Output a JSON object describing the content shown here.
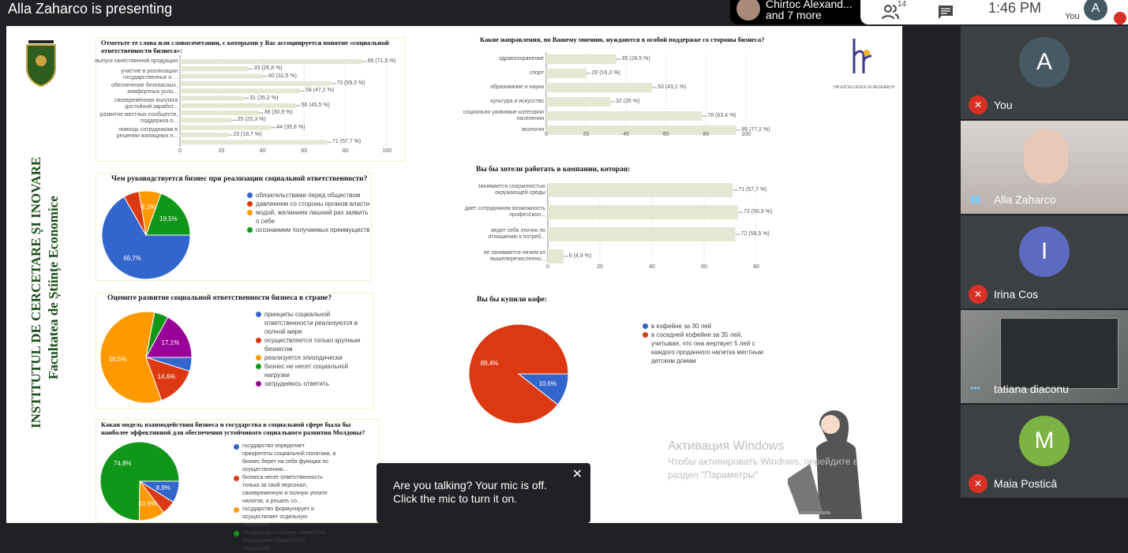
{
  "topbar": {
    "presenting": "Alla Zaharco is presenting",
    "others_name": "Chirtoc Alexand...",
    "others_more": "and 7 more",
    "people_count": "14",
    "time": "1:46 PM",
    "you_label": "You",
    "you_initial": "A"
  },
  "slide": {
    "institute_line1": "INSTITUTUL DE CERCETARE ȘI INOVARE",
    "institute_line2": "Facultatea de Științe Economice",
    "hr_logo_caption": "HR EXCELLENCE IN RESEARCH",
    "watermark_title": "Активация Windows",
    "watermark_text_1": "Чтобы активировать Windows, перейдите в",
    "watermark_text_2": "раздел \"Параметры\""
  },
  "chart_data": [
    {
      "type": "bar",
      "orientation": "horizontal",
      "title": "Отметьте те слова или словосочетания, с которыми у Вас ассоциируется понятие «социальной ответственности бизнеса»:",
      "categories": [
        "выпуск качественной продукции",
        "",
        "участие в реализации|государственных и ...",
        "",
        "обеспечение безопасных,|комфортных усло...",
        "",
        "своевременная выплата|достойной заработ...",
        "",
        "развитие местных сообществ,|поддержка о...",
        "",
        "помощь сотрудникам в|решении жилищных п...",
        ""
      ],
      "values": [
        88,
        33,
        40,
        73,
        58,
        31,
        56,
        38,
        25,
        44,
        23,
        71
      ],
      "data_labels": [
        "88 (71,5 %)",
        "33 (26,8 %)",
        "40 (32,5 %)",
        "73 (59,3 %)",
        "58 (47,2 %)",
        "31 (25,2 %)",
        "56 (45,5 %)",
        "38 (30,9 %)",
        "25 (20,3 %)",
        "44 (35,8 %)",
        "23 (18,7 %)",
        "71 (57,7 %)"
      ],
      "xlim": [
        0,
        100
      ],
      "xticks": [
        "0",
        "20",
        "40",
        "60",
        "80",
        "100"
      ],
      "color": "#e3e8d3"
    },
    {
      "type": "bar",
      "orientation": "horizontal",
      "title": "Какие направления, по Вашему мнению, нуждаются в особой поддержке со стороны бизнеса?",
      "categories": [
        "здравоохранение",
        "спорт",
        "образование и наука",
        "культура и искусство",
        "социально уязвимые категории|населения",
        "экология"
      ],
      "values": [
        35,
        20,
        53,
        32,
        78,
        95
      ],
      "data_labels": [
        "35 (28,5 %)",
        "20 (16,3 %)",
        "53 (43,1 %)",
        "32 (26 %)",
        "78 (63,4 %)",
        "95 (77,2 %)"
      ],
      "xlim": [
        0,
        100
      ],
      "xticks": [
        "0",
        "20",
        "40",
        "60",
        "80",
        "100"
      ],
      "color": "#e3e8d3"
    },
    {
      "type": "bar",
      "orientation": "horizontal",
      "title": "Вы бы хотели работать в компании, которая:",
      "categories": [
        "занимается сохранностью|окружающей среды",
        "дает сотрудником возможность|профессион...",
        "ведет себя этично по|отношению к потреб...",
        "не занимается ничем из|вышеперечисленно..."
      ],
      "values": [
        71,
        73,
        72,
        6
      ],
      "data_labels": [
        "71 (57,7 %)",
        "73 (59,3 %)",
        "72 (58,5 %)",
        "6 (4,9 %)"
      ],
      "xlim": [
        0,
        80
      ],
      "xticks": [
        "0",
        "20",
        "40",
        "60",
        "80"
      ],
      "color": "#e3e8d3"
    },
    {
      "type": "pie",
      "title": "Чем руководствуется бизнес при реализации социальной ответственности?",
      "labels": [
        "обязательствами перед обществом",
        "давлением со стороны органов власти",
        "модой, желанием лишний раз заявить о себе",
        "осознанием получаемых преимуществ"
      ],
      "values": [
        66.7,
        5.7,
        8.1,
        19.5
      ],
      "data_labels": [
        "66,7%",
        "",
        "8,1%",
        "19,5%"
      ],
      "colors": [
        "#3366cc",
        "#dc3912",
        "#ff9900",
        "#109618"
      ]
    },
    {
      "type": "pie",
      "title": "Оцените развитие социальной ответственности бизнеса в стране?",
      "labels": [
        "принципы социальной ответственности реализуются в полной мере",
        "осуществляется только крупным бизнесом",
        "реализуется эпизодически",
        "бизнес не несет социальной нагрузки",
        "затрудняюсь ответить"
      ],
      "values": [
        4.9,
        14.6,
        58.5,
        4.9,
        17.1
      ],
      "data_labels": [
        "",
        "14,6%",
        "58,5%",
        "",
        "17,1%"
      ],
      "colors": [
        "#3366cc",
        "#dc3912",
        "#ff9900",
        "#109618",
        "#990099"
      ]
    },
    {
      "type": "pie",
      "title": "Какая модель взаимодействия бизнеса и государства в социальной сфере была бы наиболее эффективной для обеспечения устойчивого социального развития Молдовы?",
      "labels": [
        "государство определяет приоритеты социальной политики, а бизнес берет на себя функции по осуществлению...",
        "бизнеса несет ответственность только за свой персонал, своевременную и полную уплате налогов, а решать со...",
        "государство формулирует и осуществляет отдельную социальну...",
        "государство и бизнес совместно определяют приоритеты социально..."
      ],
      "values": [
        8.9,
        5.7,
        10.6,
        74.8
      ],
      "data_labels": [
        "8,9%",
        "",
        "10,6%",
        "74,8%"
      ],
      "colors": [
        "#3366cc",
        "#dc3912",
        "#ff9900",
        "#109618"
      ]
    },
    {
      "type": "pie",
      "title": "Вы бы купили кофе:",
      "labels": [
        "в кофейне за 30 лей",
        "в соседней кофейне за 35 лей, учитывая, что она жертвует 5 лей с каждого проданного напитка местным детским домам"
      ],
      "values": [
        10.6,
        89.4
      ],
      "data_labels": [
        "10,6%",
        "89,4%"
      ],
      "colors": [
        "#3366cc",
        "#dc3912"
      ]
    }
  ],
  "participants": [
    {
      "name": "You",
      "initial": "A",
      "avatar_color": "#455a64",
      "muted": true
    },
    {
      "name": "Alla Zaharco",
      "video": true,
      "speaking": true
    },
    {
      "name": "Irina Cos",
      "initial": "I",
      "avatar_color": "#5c6bc0",
      "muted": true
    },
    {
      "name": "tatiana diaconu",
      "video": true
    },
    {
      "name": "Maia Posticâ",
      "initial": "M",
      "avatar_color": "#7cb342",
      "muted": true
    }
  ],
  "toast": {
    "message": "Are you talking? Your mic is off. Click the mic to turn it on."
  }
}
